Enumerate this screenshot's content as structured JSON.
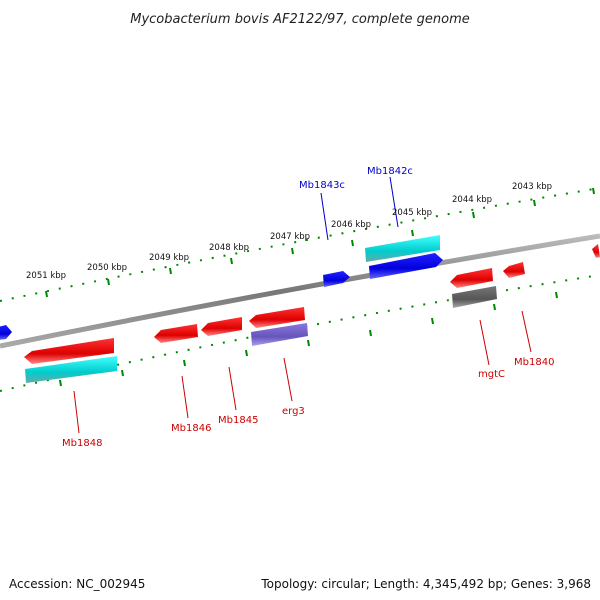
{
  "title": "Mycobacterium bovis AF2122/97, complete genome",
  "footer": {
    "accession": "Accession: NC_002945",
    "summary": "Topology: circular; Length: 4,345,492 bp; Genes: 3,968"
  },
  "ticks": [
    "2051 kbp",
    "2050 kbp",
    "2049 kbp",
    "2048 kbp",
    "2047 kbp",
    "2046 kbp",
    "2045 kbp",
    "2044 kbp",
    "2043 kbp"
  ],
  "genes_forward": [
    {
      "name": "Mb1843c",
      "color": "#0000cc"
    },
    {
      "name": "Mb1842c",
      "color": "#0000cc"
    }
  ],
  "genes_reverse": [
    {
      "name": "Mb1848",
      "color": "#cc0000"
    },
    {
      "name": "Mb1846",
      "color": "#cc0000"
    },
    {
      "name": "Mb1845",
      "color": "#cc0000"
    },
    {
      "name": "erg3",
      "color": "#cc0000"
    },
    {
      "name": "mgtC",
      "color": "#cc0000"
    },
    {
      "name": "Mb1840",
      "color": "#cc0000"
    }
  ],
  "colors": {
    "backbone": "#888888",
    "tick": "#008800",
    "cds_forward": "#0000ff",
    "cds_reverse": "#ff0000",
    "rna_cyan": "#00dddd",
    "purple": "#7766cc",
    "grey": "#666666"
  }
}
